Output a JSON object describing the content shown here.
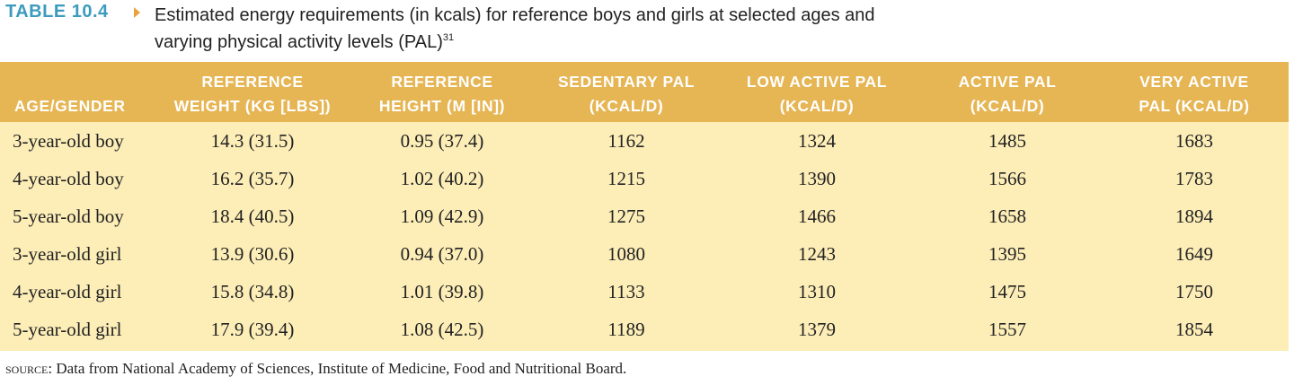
{
  "caption": {
    "table_label": "TABLE 10.4",
    "title": "Estimated energy requirements (in kcals) for reference boys and girls at selected ages and varying physical activity levels (PAL)",
    "title_line1": "Estimated energy requirements (in kcals) for reference boys and girls at selected ages and",
    "title_line2": "varying physical activity levels (PAL)",
    "footnote_ref": "31"
  },
  "table": {
    "headers": [
      {
        "line1": "",
        "line2": "AGE/GENDER"
      },
      {
        "line1": "REFERENCE",
        "line2": "WEIGHT (KG [LBS])"
      },
      {
        "line1": "REFERENCE",
        "line2": "HEIGHT (M [IN])"
      },
      {
        "line1": "SEDENTARY PAL",
        "line2": "(KCAL/D)"
      },
      {
        "line1": "LOW ACTIVE PAL",
        "line2": "(KCAL/D)"
      },
      {
        "line1": "ACTIVE PAL",
        "line2": "(KCAL/D)"
      },
      {
        "line1": "VERY ACTIVE",
        "line2": "PAL (KCAL/D)"
      }
    ],
    "rows": [
      [
        "3-year-old boy",
        "14.3 (31.5)",
        "0.95 (37.4)",
        "1162",
        "1324",
        "1485",
        "1683"
      ],
      [
        "4-year-old boy",
        "16.2 (35.7)",
        "1.02 (40.2)",
        "1215",
        "1390",
        "1566",
        "1783"
      ],
      [
        "5-year-old boy",
        "18.4 (40.5)",
        "1.09 (42.9)",
        "1275",
        "1466",
        "1658",
        "1894"
      ],
      [
        "3-year-old girl",
        "13.9 (30.6)",
        "0.94 (37.0)",
        "1080",
        "1243",
        "1395",
        "1649"
      ],
      [
        "4-year-old girl",
        "15.8 (34.8)",
        "1.01 (39.8)",
        "1133",
        "1310",
        "1475",
        "1750"
      ],
      [
        "5-year-old girl",
        "17.9 (39.4)",
        "1.08 (42.5)",
        "1189",
        "1379",
        "1557",
        "1854"
      ]
    ]
  },
  "source": {
    "label": "source:",
    "text": "Data from National Academy of Sciences, Institute of Medicine, Food and Nutritional Board."
  },
  "colors": {
    "accent_label": "#3b9bbd",
    "arrow": "#e8a33c",
    "header_bg": "#e6b554",
    "body_bg": "#fdeeb8"
  }
}
